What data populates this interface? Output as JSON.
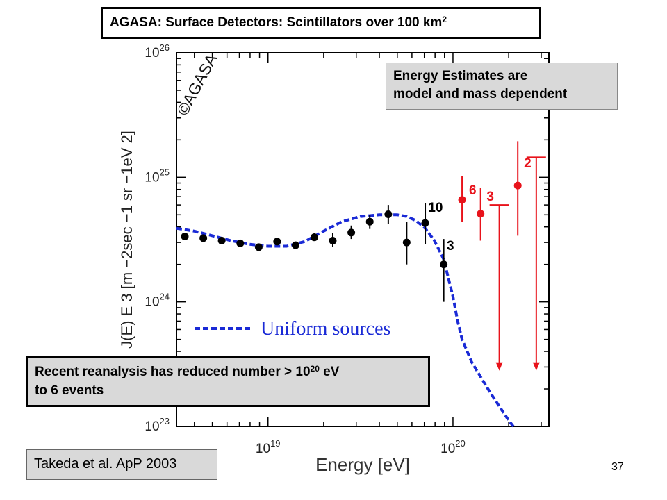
{
  "title": {
    "text": "AGASA: Surface Detectors: Scintillators over 100 km",
    "sup": "2"
  },
  "energy_note": {
    "line1": "Energy Estimates are",
    "line2": "model and mass dependent"
  },
  "reanalysis_note": {
    "pre": "Recent reanalysis has reduced number > 10",
    "sup": "20",
    "post": " eV",
    "line2": "to 6 events"
  },
  "citation": "Takeda et al. ApP 2003",
  "slide_number": "37",
  "chart_data": {
    "type": "scatter",
    "xscale": "log",
    "yscale": "log",
    "xlim": [
      3.2e+18,
      3.3e+20
    ],
    "ylim": [
      1e+23,
      1e+26
    ],
    "xlabel": "Energy [eV]",
    "ylabel": "J(E) E 3 [m −2sec −1 sr −1eV 2]",
    "x_ticks": [
      {
        "value": 1e+19,
        "base": "10",
        "exp": "19"
      },
      {
        "value": 1e+20,
        "base": "10",
        "exp": "20"
      }
    ],
    "y_ticks": [
      {
        "value": 1e+23,
        "base": "10",
        "exp": "23"
      },
      {
        "value": 1e+24,
        "base": "10",
        "exp": "24"
      },
      {
        "value": 1e+25,
        "base": "10",
        "exp": "25"
      },
      {
        "value": 1e+26,
        "base": "10",
        "exp": "26"
      }
    ],
    "watermark": "©AGASA",
    "colors": {
      "black_points": "#000000",
      "red_points": "#e8131b",
      "curve": "#1a2ad6"
    },
    "series": [
      {
        "color": "black",
        "points": [
          {
            "x": 3.55e+18,
            "y": 3.35e+24,
            "yerr": [
              3.25e+24,
              3.45e+24
            ]
          },
          {
            "x": 4.47e+18,
            "y": 3.25e+24,
            "yerr": [
              3.15e+24,
              3.35e+24
            ]
          },
          {
            "x": 5.62e+18,
            "y": 3.1e+24,
            "yerr": [
              2.98e+24,
              3.22e+24
            ]
          },
          {
            "x": 7.08e+18,
            "y": 2.95e+24,
            "yerr": [
              2.85e+24,
              3.07e+24
            ]
          },
          {
            "x": 8.91e+18,
            "y": 2.75e+24,
            "yerr": [
              2.62e+24,
              2.9e+24
            ]
          },
          {
            "x": 1.12e+19,
            "y": 3.05e+24,
            "yerr": [
              2.9e+24,
              3.22e+24
            ]
          },
          {
            "x": 1.41e+19,
            "y": 2.85e+24,
            "yerr": [
              2.68e+24,
              3.05e+24
            ]
          },
          {
            "x": 1.78e+19,
            "y": 3.3e+24,
            "yerr": [
              3.08e+24,
              3.55e+24
            ]
          },
          {
            "x": 2.24e+19,
            "y": 3.1e+24,
            "yerr": [
              2.75e+24,
              3.55e+24
            ]
          },
          {
            "x": 2.82e+19,
            "y": 3.6e+24,
            "yerr": [
              3.2e+24,
              4.1e+24
            ]
          },
          {
            "x": 3.55e+19,
            "y": 4.4e+24,
            "yerr": [
              3.85e+24,
              5e+24
            ]
          },
          {
            "x": 4.47e+19,
            "y": 5.05e+24,
            "yerr": [
              4.2e+24,
              6e+24
            ]
          },
          {
            "x": 5.62e+19,
            "y": 3e+24,
            "yerr": [
              2e+24,
              4.4e+24
            ]
          },
          {
            "x": 7.08e+19,
            "y": 4.3e+24,
            "yerr": [
              2.9e+24,
              6.2e+24
            ]
          },
          {
            "x": 8.91e+19,
            "y": 2e+24,
            "yerr": [
              1e+24,
              3.2e+24
            ]
          }
        ]
      },
      {
        "color": "red",
        "points": [
          {
            "x": 1.12e+20,
            "y": 6.6e+24,
            "yerr": [
              4.4e+24,
              1.02e+25
            ]
          },
          {
            "x": 1.41e+20,
            "y": 5.1e+24,
            "yerr": [
              3.1e+24,
              8.2e+24
            ]
          },
          {
            "x": 2.24e+20,
            "y": 8.6e+24,
            "yerr": [
              3.4e+24,
              1.95e+25
            ]
          }
        ]
      }
    ],
    "upper_limits": [
      {
        "x": 1.78e+20,
        "y": 6e+24,
        "arrow_to": 2.8e+23
      },
      {
        "x": 2.82e+20,
        "y": 1.45e+25,
        "arrow_to": 2.8e+23
      }
    ],
    "point_labels": [
      {
        "text": "6",
        "x": 1.22e+20,
        "y": 7.3e+24,
        "color": "red"
      },
      {
        "text": "3",
        "x": 1.52e+20,
        "y": 6.5e+24,
        "color": "red"
      },
      {
        "text": "2",
        "x": 2.42e+20,
        "y": 1.2e+25,
        "color": "red"
      },
      {
        "text": "10",
        "x": 7.35e+19,
        "y": 5.3e+24,
        "color": "black"
      },
      {
        "text": "3",
        "x": 9.25e+19,
        "y": 2.6e+24,
        "color": "black"
      }
    ],
    "model_curve": {
      "name": "Uniform sources",
      "style": "dashed",
      "points": [
        [
          3.2e+18,
          3.9e+24
        ],
        [
          4e+18,
          3.7e+24
        ],
        [
          5e+18,
          3.4e+24
        ],
        [
          6.3e+18,
          3.1e+24
        ],
        [
          7.9e+18,
          2.9e+24
        ],
        [
          1e+19,
          2.8e+24
        ],
        [
          1.26e+19,
          2.8e+24
        ],
        [
          1.58e+19,
          3.05e+24
        ],
        [
          2e+19,
          3.7e+24
        ],
        [
          2.5e+19,
          4.4e+24
        ],
        [
          3.16e+19,
          4.85e+24
        ],
        [
          4e+19,
          5e+24
        ],
        [
          5e+19,
          5e+24
        ],
        [
          5.62e+19,
          4.85e+24
        ],
        [
          6.3e+19,
          4.5e+24
        ],
        [
          7.08e+19,
          3.9e+24
        ],
        [
          7.94e+19,
          3.1e+24
        ],
        [
          8.91e+19,
          2.2e+24
        ],
        [
          1e+20,
          1.1e+24
        ],
        [
          1.06e+20,
          7e+23
        ],
        [
          1.12e+20,
          5e+23
        ],
        [
          1.26e+20,
          3.3e+23
        ],
        [
          1.41e+20,
          2.5e+23
        ],
        [
          1.58e+20,
          1.9e+23
        ],
        [
          1.78e+20,
          1.45e+23
        ],
        [
          2e+20,
          1.12e+23
        ],
        [
          2.12e+20,
          1e+23
        ]
      ]
    }
  }
}
